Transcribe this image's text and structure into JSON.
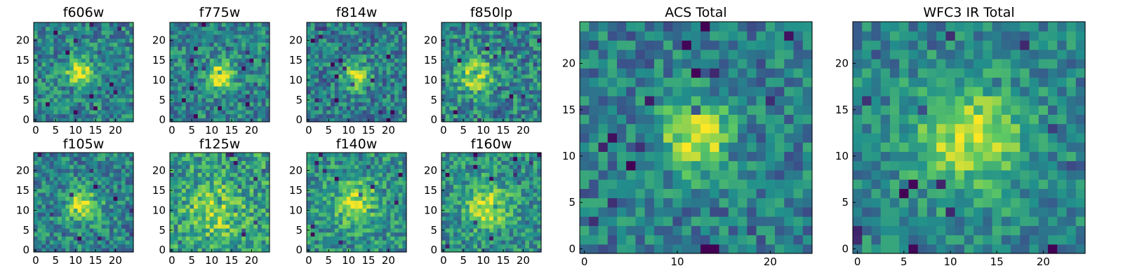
{
  "figure": {
    "colormap": "viridis",
    "colormap_stops": [
      "#440154",
      "#3b528b",
      "#21918c",
      "#5ec962",
      "#fde725"
    ],
    "frame_color": "#000000"
  },
  "chart_data": [
    {
      "type": "heatmap",
      "title": "f606w",
      "grid_size": 25,
      "center": [
        11,
        12
      ],
      "sigma": 2.2,
      "peak": 0.55,
      "bg": 0.45,
      "noise": 0.22,
      "seed": 11,
      "x_ticks": [
        "0",
        "5",
        "10",
        "15",
        "20"
      ],
      "y_ticks": [
        "0",
        "5",
        "10",
        "15",
        "20"
      ],
      "xlim": [
        0,
        25
      ],
      "ylim": [
        0,
        25
      ]
    },
    {
      "type": "heatmap",
      "title": "f775w",
      "grid_size": 25,
      "center": [
        12,
        11
      ],
      "sigma": 2.4,
      "peak": 0.55,
      "bg": 0.45,
      "noise": 0.22,
      "seed": 23,
      "x_ticks": [
        "0",
        "5",
        "10",
        "15",
        "20"
      ],
      "y_ticks": [
        "0",
        "5",
        "10",
        "15",
        "20"
      ],
      "xlim": [
        0,
        25
      ],
      "ylim": [
        0,
        25
      ]
    },
    {
      "type": "heatmap",
      "title": "f814w",
      "grid_size": 25,
      "center": [
        12,
        11
      ],
      "sigma": 2.4,
      "peak": 0.5,
      "bg": 0.42,
      "noise": 0.22,
      "seed": 37,
      "x_ticks": [
        "0",
        "5",
        "10",
        "15",
        "20"
      ],
      "y_ticks": [
        "0",
        "5",
        "10",
        "15",
        "20"
      ],
      "xlim": [
        0,
        25
      ],
      "ylim": [
        0,
        25
      ]
    },
    {
      "type": "heatmap",
      "title": "f850lp",
      "grid_size": 25,
      "center": [
        8,
        11
      ],
      "sigma": 3.2,
      "peak": 0.4,
      "bg": 0.45,
      "noise": 0.24,
      "seed": 41,
      "x_ticks": [
        "0",
        "5",
        "10",
        "15",
        "20"
      ],
      "y_ticks": [
        "0",
        "5",
        "10",
        "15",
        "20"
      ],
      "xlim": [
        0,
        25
      ],
      "ylim": [
        0,
        25
      ]
    },
    {
      "type": "heatmap",
      "title": "f105w",
      "grid_size": 25,
      "center": [
        12,
        11
      ],
      "sigma": 2.8,
      "peak": 0.5,
      "bg": 0.45,
      "noise": 0.22,
      "seed": 53,
      "x_ticks": [
        "0",
        "5",
        "10",
        "15",
        "20"
      ],
      "y_ticks": [
        "0",
        "5",
        "10",
        "15",
        "20"
      ],
      "xlim": [
        0,
        25
      ],
      "ylim": [
        0,
        25
      ]
    },
    {
      "type": "heatmap",
      "title": "f125w",
      "grid_size": 25,
      "center": [
        11,
        10
      ],
      "sigma": 4.5,
      "peak": 0.3,
      "bg": 0.55,
      "noise": 0.24,
      "seed": 61,
      "x_ticks": [
        "0",
        "5",
        "10",
        "15",
        "20"
      ],
      "y_ticks": [
        "0",
        "5",
        "10",
        "15",
        "20"
      ],
      "xlim": [
        0,
        25
      ],
      "ylim": [
        0,
        25
      ]
    },
    {
      "type": "heatmap",
      "title": "f140w",
      "grid_size": 25,
      "center": [
        12,
        12
      ],
      "sigma": 4.0,
      "peak": 0.35,
      "bg": 0.5,
      "noise": 0.22,
      "seed": 73,
      "x_ticks": [
        "0",
        "5",
        "10",
        "15",
        "20"
      ],
      "y_ticks": [
        "0",
        "5",
        "10",
        "15",
        "20"
      ],
      "xlim": [
        0,
        25
      ],
      "ylim": [
        0,
        25
      ]
    },
    {
      "type": "heatmap",
      "title": "f160w",
      "grid_size": 25,
      "center": [
        11,
        11
      ],
      "sigma": 3.8,
      "peak": 0.4,
      "bg": 0.5,
      "noise": 0.22,
      "seed": 89,
      "x_ticks": [
        "0",
        "5",
        "10",
        "15",
        "20"
      ],
      "y_ticks": [
        "0",
        "5",
        "10",
        "15",
        "20"
      ],
      "xlim": [
        0,
        25
      ],
      "ylim": [
        0,
        25
      ]
    },
    {
      "type": "heatmap",
      "title": "ACS Total",
      "grid_size": 25,
      "center": [
        12,
        12
      ],
      "sigma": 2.6,
      "peak": 0.55,
      "bg": 0.42,
      "noise": 0.2,
      "seed": 97,
      "x_ticks": [
        "0",
        "10",
        "20"
      ],
      "y_ticks": [
        "0",
        "5",
        "10",
        "15",
        "20"
      ],
      "xlim": [
        0,
        25
      ],
      "ylim": [
        0,
        25
      ]
    },
    {
      "type": "heatmap",
      "title": "WFC3 IR Total",
      "grid_size": 25,
      "center": [
        12,
        12
      ],
      "sigma": 4.2,
      "peak": 0.45,
      "bg": 0.45,
      "noise": 0.18,
      "seed": 101,
      "x_ticks": [
        "0",
        "5",
        "10",
        "15",
        "20"
      ],
      "y_ticks": [
        "0",
        "5",
        "10",
        "15",
        "20"
      ],
      "xlim": [
        0,
        25
      ],
      "ylim": [
        0,
        25
      ]
    }
  ]
}
